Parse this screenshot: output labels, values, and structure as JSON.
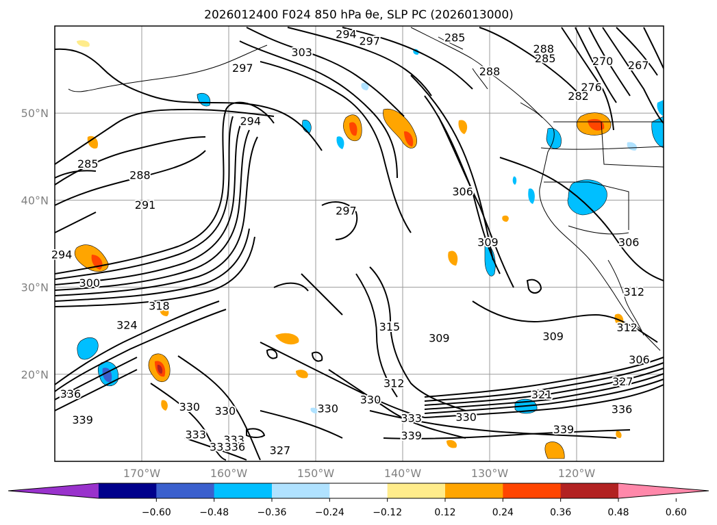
{
  "chart_data": {
    "type": "contour-map",
    "title": "2026012400 F024 850 hPa θe, SLP PC (2026013000)",
    "map_extent": {
      "lon": [
        -180,
        -110
      ],
      "lat": [
        10,
        60
      ]
    },
    "x_ticks": [
      {
        "value": -170,
        "label": "170°W"
      },
      {
        "value": -160,
        "label": "160°W"
      },
      {
        "value": -150,
        "label": "150°W"
      },
      {
        "value": -140,
        "label": "140°W"
      },
      {
        "value": -130,
        "label": "130°W"
      },
      {
        "value": -120,
        "label": "120°W"
      }
    ],
    "y_ticks": [
      {
        "value": 20,
        "label": "20°N"
      },
      {
        "value": 30,
        "label": "30°N"
      },
      {
        "value": 40,
        "label": "40°N"
      },
      {
        "value": 50,
        "label": "50°N"
      }
    ],
    "contour_labels": [
      {
        "lon": -146.5,
        "lat": 59.1,
        "text": "294"
      },
      {
        "lon": -143.8,
        "lat": 58.3,
        "text": "297"
      },
      {
        "lon": -134.0,
        "lat": 58.7,
        "text": "285"
      },
      {
        "lon": -130.0,
        "lat": 54.8,
        "text": "288"
      },
      {
        "lon": -123.8,
        "lat": 57.4,
        "text": "288"
      },
      {
        "lon": -123.6,
        "lat": 56.3,
        "text": "285"
      },
      {
        "lon": -117.0,
        "lat": 56.0,
        "text": "270"
      },
      {
        "lon": -112.9,
        "lat": 55.5,
        "text": "267"
      },
      {
        "lon": -118.3,
        "lat": 53.0,
        "text": "276"
      },
      {
        "lon": -119.8,
        "lat": 52.0,
        "text": "282"
      },
      {
        "lon": -151.6,
        "lat": 57.0,
        "text": "303"
      },
      {
        "lon": -158.4,
        "lat": 55.2,
        "text": "297"
      },
      {
        "lon": -157.5,
        "lat": 49.1,
        "text": "294"
      },
      {
        "lon": -176.2,
        "lat": 44.2,
        "text": "285"
      },
      {
        "lon": -170.2,
        "lat": 42.9,
        "text": "288"
      },
      {
        "lon": -169.6,
        "lat": 39.5,
        "text": "291"
      },
      {
        "lon": -146.5,
        "lat": 38.8,
        "text": "297"
      },
      {
        "lon": -133.1,
        "lat": 41.0,
        "text": "306"
      },
      {
        "lon": -130.2,
        "lat": 35.2,
        "text": "309"
      },
      {
        "lon": -179.2,
        "lat": 33.8,
        "text": "294"
      },
      {
        "lon": -176.0,
        "lat": 30.5,
        "text": "300"
      },
      {
        "lon": -168.0,
        "lat": 27.9,
        "text": "318"
      },
      {
        "lon": -171.7,
        "lat": 25.7,
        "text": "324"
      },
      {
        "lon": -141.5,
        "lat": 25.5,
        "text": "315"
      },
      {
        "lon": -135.8,
        "lat": 24.2,
        "text": "309"
      },
      {
        "lon": -122.7,
        "lat": 24.4,
        "text": "309"
      },
      {
        "lon": -114.0,
        "lat": 35.2,
        "text": "306"
      },
      {
        "lon": -113.4,
        "lat": 29.5,
        "text": "312"
      },
      {
        "lon": -114.2,
        "lat": 25.4,
        "text": "312"
      },
      {
        "lon": -112.8,
        "lat": 21.7,
        "text": "306"
      },
      {
        "lon": -114.7,
        "lat": 19.2,
        "text": "327"
      },
      {
        "lon": -124.0,
        "lat": 17.7,
        "text": "321"
      },
      {
        "lon": -132.7,
        "lat": 15.1,
        "text": "330"
      },
      {
        "lon": -139.0,
        "lat": 15.0,
        "text": "333"
      },
      {
        "lon": -143.7,
        "lat": 17.1,
        "text": "330"
      },
      {
        "lon": -141.0,
        "lat": 19.0,
        "text": "312"
      },
      {
        "lon": -178.2,
        "lat": 17.8,
        "text": "336"
      },
      {
        "lon": -176.8,
        "lat": 14.8,
        "text": "339"
      },
      {
        "lon": -164.5,
        "lat": 16.3,
        "text": "330"
      },
      {
        "lon": -160.4,
        "lat": 15.8,
        "text": "330"
      },
      {
        "lon": -163.8,
        "lat": 13.1,
        "text": "333"
      },
      {
        "lon": -159.4,
        "lat": 12.5,
        "text": "333"
      },
      {
        "lon": -159.3,
        "lat": 11.7,
        "text": "336"
      },
      {
        "lon": -161.4,
        "lat": 11.7,
        "text": "33"
      },
      {
        "lon": -148.6,
        "lat": 16.1,
        "text": "330"
      },
      {
        "lon": -154.1,
        "lat": 11.3,
        "text": "327"
      },
      {
        "lon": -139.0,
        "lat": 13.0,
        "text": "339"
      },
      {
        "lon": -121.5,
        "lat": 13.7,
        "text": "339"
      },
      {
        "lon": -114.8,
        "lat": 16.0,
        "text": "336"
      }
    ],
    "colorbar": {
      "type": "colorbar",
      "extend": "both",
      "tick_values": [
        -0.6,
        -0.48,
        -0.36,
        -0.24,
        -0.12,
        0.12,
        0.24,
        0.36,
        0.48,
        0.6
      ],
      "tick_labels": [
        "−0.60",
        "−0.48",
        "−0.36",
        "−0.24",
        "−0.12",
        "0.12",
        "0.24",
        "0.36",
        "0.48",
        "0.60"
      ],
      "colors": [
        "#9932cc",
        "#00008b",
        "#3a5fcd",
        "#00bfff",
        "#b0e2ff",
        "#ffffff",
        "#ffec8b",
        "#ffa500",
        "#ff4500",
        "#b22222",
        "#ff88aa"
      ]
    }
  }
}
